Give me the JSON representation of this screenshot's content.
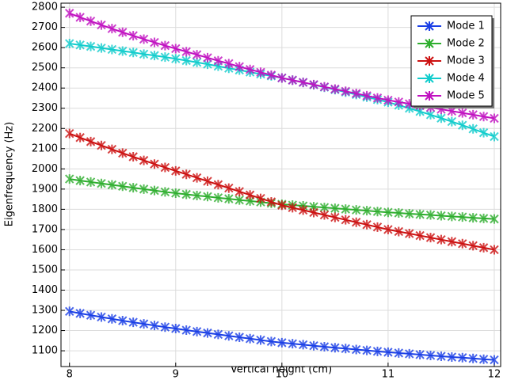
{
  "chart_data": {
    "type": "line",
    "x_label": "Vertical height (cm)",
    "y_label": "Eigenfrequency (Hz)",
    "x": [
      8,
      8.1,
      8.2,
      8.3,
      8.4,
      8.5,
      8.6,
      8.7,
      8.8,
      8.9,
      9,
      9.1,
      9.2,
      9.3,
      9.4,
      9.5,
      9.6,
      9.7,
      9.8,
      9.9,
      10,
      10.1,
      10.2,
      10.3,
      10.4,
      10.5,
      10.6,
      10.7,
      10.8,
      10.9,
      11,
      11.1,
      11.2,
      11.3,
      11.4,
      11.5,
      11.6,
      11.7,
      11.8,
      11.9,
      12
    ],
    "series": [
      {
        "name": "Mode 1",
        "color": "#1a3fe6",
        "values": [
          1295,
          1285,
          1276,
          1267,
          1258,
          1249,
          1241,
          1233,
          1225,
          1217,
          1210,
          1202,
          1195,
          1188,
          1181,
          1174,
          1167,
          1160,
          1153,
          1146,
          1140,
          1135,
          1130,
          1125,
          1120,
          1115,
          1111,
          1106,
          1102,
          1097,
          1093,
          1089,
          1085,
          1081,
          1077,
          1073,
          1069,
          1066,
          1062,
          1058,
          1055
        ]
      },
      {
        "name": "Mode 2",
        "color": "#2eae2e",
        "values": [
          1950,
          1942,
          1935,
          1928,
          1921,
          1914,
          1907,
          1900,
          1893,
          1886,
          1880,
          1874,
          1868,
          1863,
          1857,
          1852,
          1846,
          1841,
          1836,
          1830,
          1825,
          1821,
          1817,
          1813,
          1809,
          1805,
          1801,
          1797,
          1793,
          1789,
          1785,
          1782,
          1778,
          1775,
          1772,
          1768,
          1765,
          1762,
          1758,
          1755,
          1752
        ]
      },
      {
        "name": "Mode 3",
        "color": "#cc1010",
        "values": [
          2175,
          2155,
          2135,
          2116,
          2097,
          2078,
          2060,
          2042,
          2024,
          2007,
          1990,
          1973,
          1956,
          1939,
          1922,
          1905,
          1888,
          1871,
          1854,
          1837,
          1820,
          1808,
          1796,
          1784,
          1772,
          1760,
          1748,
          1736,
          1724,
          1712,
          1700,
          1690,
          1680,
          1670,
          1660,
          1650,
          1640,
          1630,
          1620,
          1610,
          1600
        ]
      },
      {
        "name": "Mode 4",
        "color": "#10cccc",
        "values": [
          2620,
          2613,
          2606,
          2598,
          2591,
          2583,
          2576,
          2568,
          2561,
          2553,
          2545,
          2536,
          2527,
          2518,
          2508,
          2498,
          2489,
          2479,
          2469,
          2460,
          2450,
          2439,
          2428,
          2416,
          2404,
          2392,
          2380,
          2368,
          2355,
          2343,
          2330,
          2315,
          2300,
          2284,
          2268,
          2251,
          2234,
          2216,
          2198,
          2179,
          2160
        ]
      },
      {
        "name": "Mode 5",
        "color": "#c010c0",
        "values": [
          2770,
          2750,
          2731,
          2712,
          2694,
          2676,
          2659,
          2642,
          2626,
          2610,
          2595,
          2580,
          2565,
          2550,
          2535,
          2521,
          2506,
          2492,
          2478,
          2464,
          2450,
          2439,
          2428,
          2417,
          2406,
          2395,
          2384,
          2373,
          2362,
          2351,
          2340,
          2331,
          2322,
          2313,
          2304,
          2295,
          2286,
          2277,
          2268,
          2259,
          2250
        ]
      }
    ],
    "xlim": [
      7.92,
      12.06
    ],
    "xticks": [
      8,
      9,
      10,
      11,
      12
    ],
    "ylim": [
      1022,
      2820
    ],
    "yticks": [
      1100,
      1200,
      1300,
      1400,
      1500,
      1600,
      1700,
      1800,
      1900,
      2000,
      2100,
      2200,
      2300,
      2400,
      2500,
      2600,
      2700,
      2800
    ],
    "grid": true,
    "legend": "upper right"
  }
}
